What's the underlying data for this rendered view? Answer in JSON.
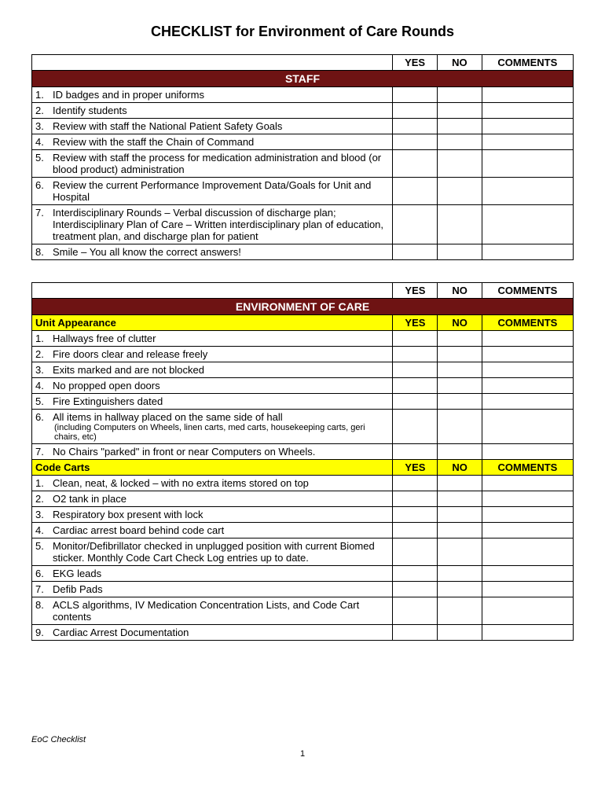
{
  "title": "CHECKLIST for Environment of Care Rounds",
  "columns": {
    "yes": "YES",
    "no": "NO",
    "comments": "COMMENTS"
  },
  "colors": {
    "section_bg": "#6e1313",
    "section_fg": "#ffffff",
    "subheader_bg": "#ffff00",
    "border": "#000000",
    "page_bg": "#ffffff"
  },
  "tables": [
    {
      "section": "STAFF",
      "groups": [
        {
          "subheader": null,
          "items": [
            {
              "num": "1.",
              "text": "ID badges and in proper uniforms"
            },
            {
              "num": "2.",
              "text": "Identify students"
            },
            {
              "num": "3.",
              "text": "Review with staff the National Patient Safety Goals"
            },
            {
              "num": "4.",
              "text": "Review with the staff the Chain of Command"
            },
            {
              "num": "5.",
              "text": "Review with staff the process for medication administration and blood (or blood product) administration"
            },
            {
              "num": "6.",
              "text": "Review the current Performance Improvement Data/Goals for Unit and Hospital"
            },
            {
              "num": "7.",
              "text": "Interdisciplinary Rounds – Verbal discussion of discharge plan; Interdisciplinary Plan of Care – Written interdisciplinary plan of education, treatment plan, and discharge plan for patient"
            },
            {
              "num": "8.",
              "text": "Smile – You all know the correct answers!"
            }
          ]
        }
      ]
    },
    {
      "section": "ENVIRONMENT OF CARE",
      "groups": [
        {
          "subheader": "Unit Appearance",
          "items": [
            {
              "num": "1.",
              "text": "Hallways free of clutter"
            },
            {
              "num": "2.",
              "text": "Fire doors clear and release freely"
            },
            {
              "num": "3.",
              "text": "Exits marked and are not blocked"
            },
            {
              "num": "4.",
              "text": "No propped open doors"
            },
            {
              "num": "5.",
              "text": "Fire Extinguishers dated"
            },
            {
              "num": "6.",
              "text": "All items in hallway placed on the same side of hall",
              "subnote": "(including Computers on Wheels, linen carts, med carts, housekeeping carts, geri chairs, etc)"
            },
            {
              "num": "7.",
              "text": "No Chairs \"parked\" in front or near Computers on Wheels."
            }
          ]
        },
        {
          "subheader": "Code Carts",
          "items": [
            {
              "num": "1.",
              "text": "Clean, neat, & locked – with no extra items stored on top"
            },
            {
              "num": "2.",
              "text": "O2 tank in place"
            },
            {
              "num": "3.",
              "text": "Respiratory box present with lock"
            },
            {
              "num": "4.",
              "text": "Cardiac arrest board behind code cart"
            },
            {
              "num": "5.",
              "text": "Monitor/Defibrillator checked in unplugged position with current Biomed sticker.  Monthly Code Cart Check Log entries up to date."
            },
            {
              "num": "6.",
              "text": "EKG leads"
            },
            {
              "num": "7.",
              "text": "Defib Pads"
            },
            {
              "num": "8.",
              "text": "ACLS algorithms, IV Medication Concentration Lists, and Code Cart contents"
            },
            {
              "num": "9.",
              "text": "Cardiac Arrest Documentation"
            }
          ]
        }
      ]
    }
  ],
  "footer": {
    "label": "EoC Checklist",
    "page": "1"
  }
}
